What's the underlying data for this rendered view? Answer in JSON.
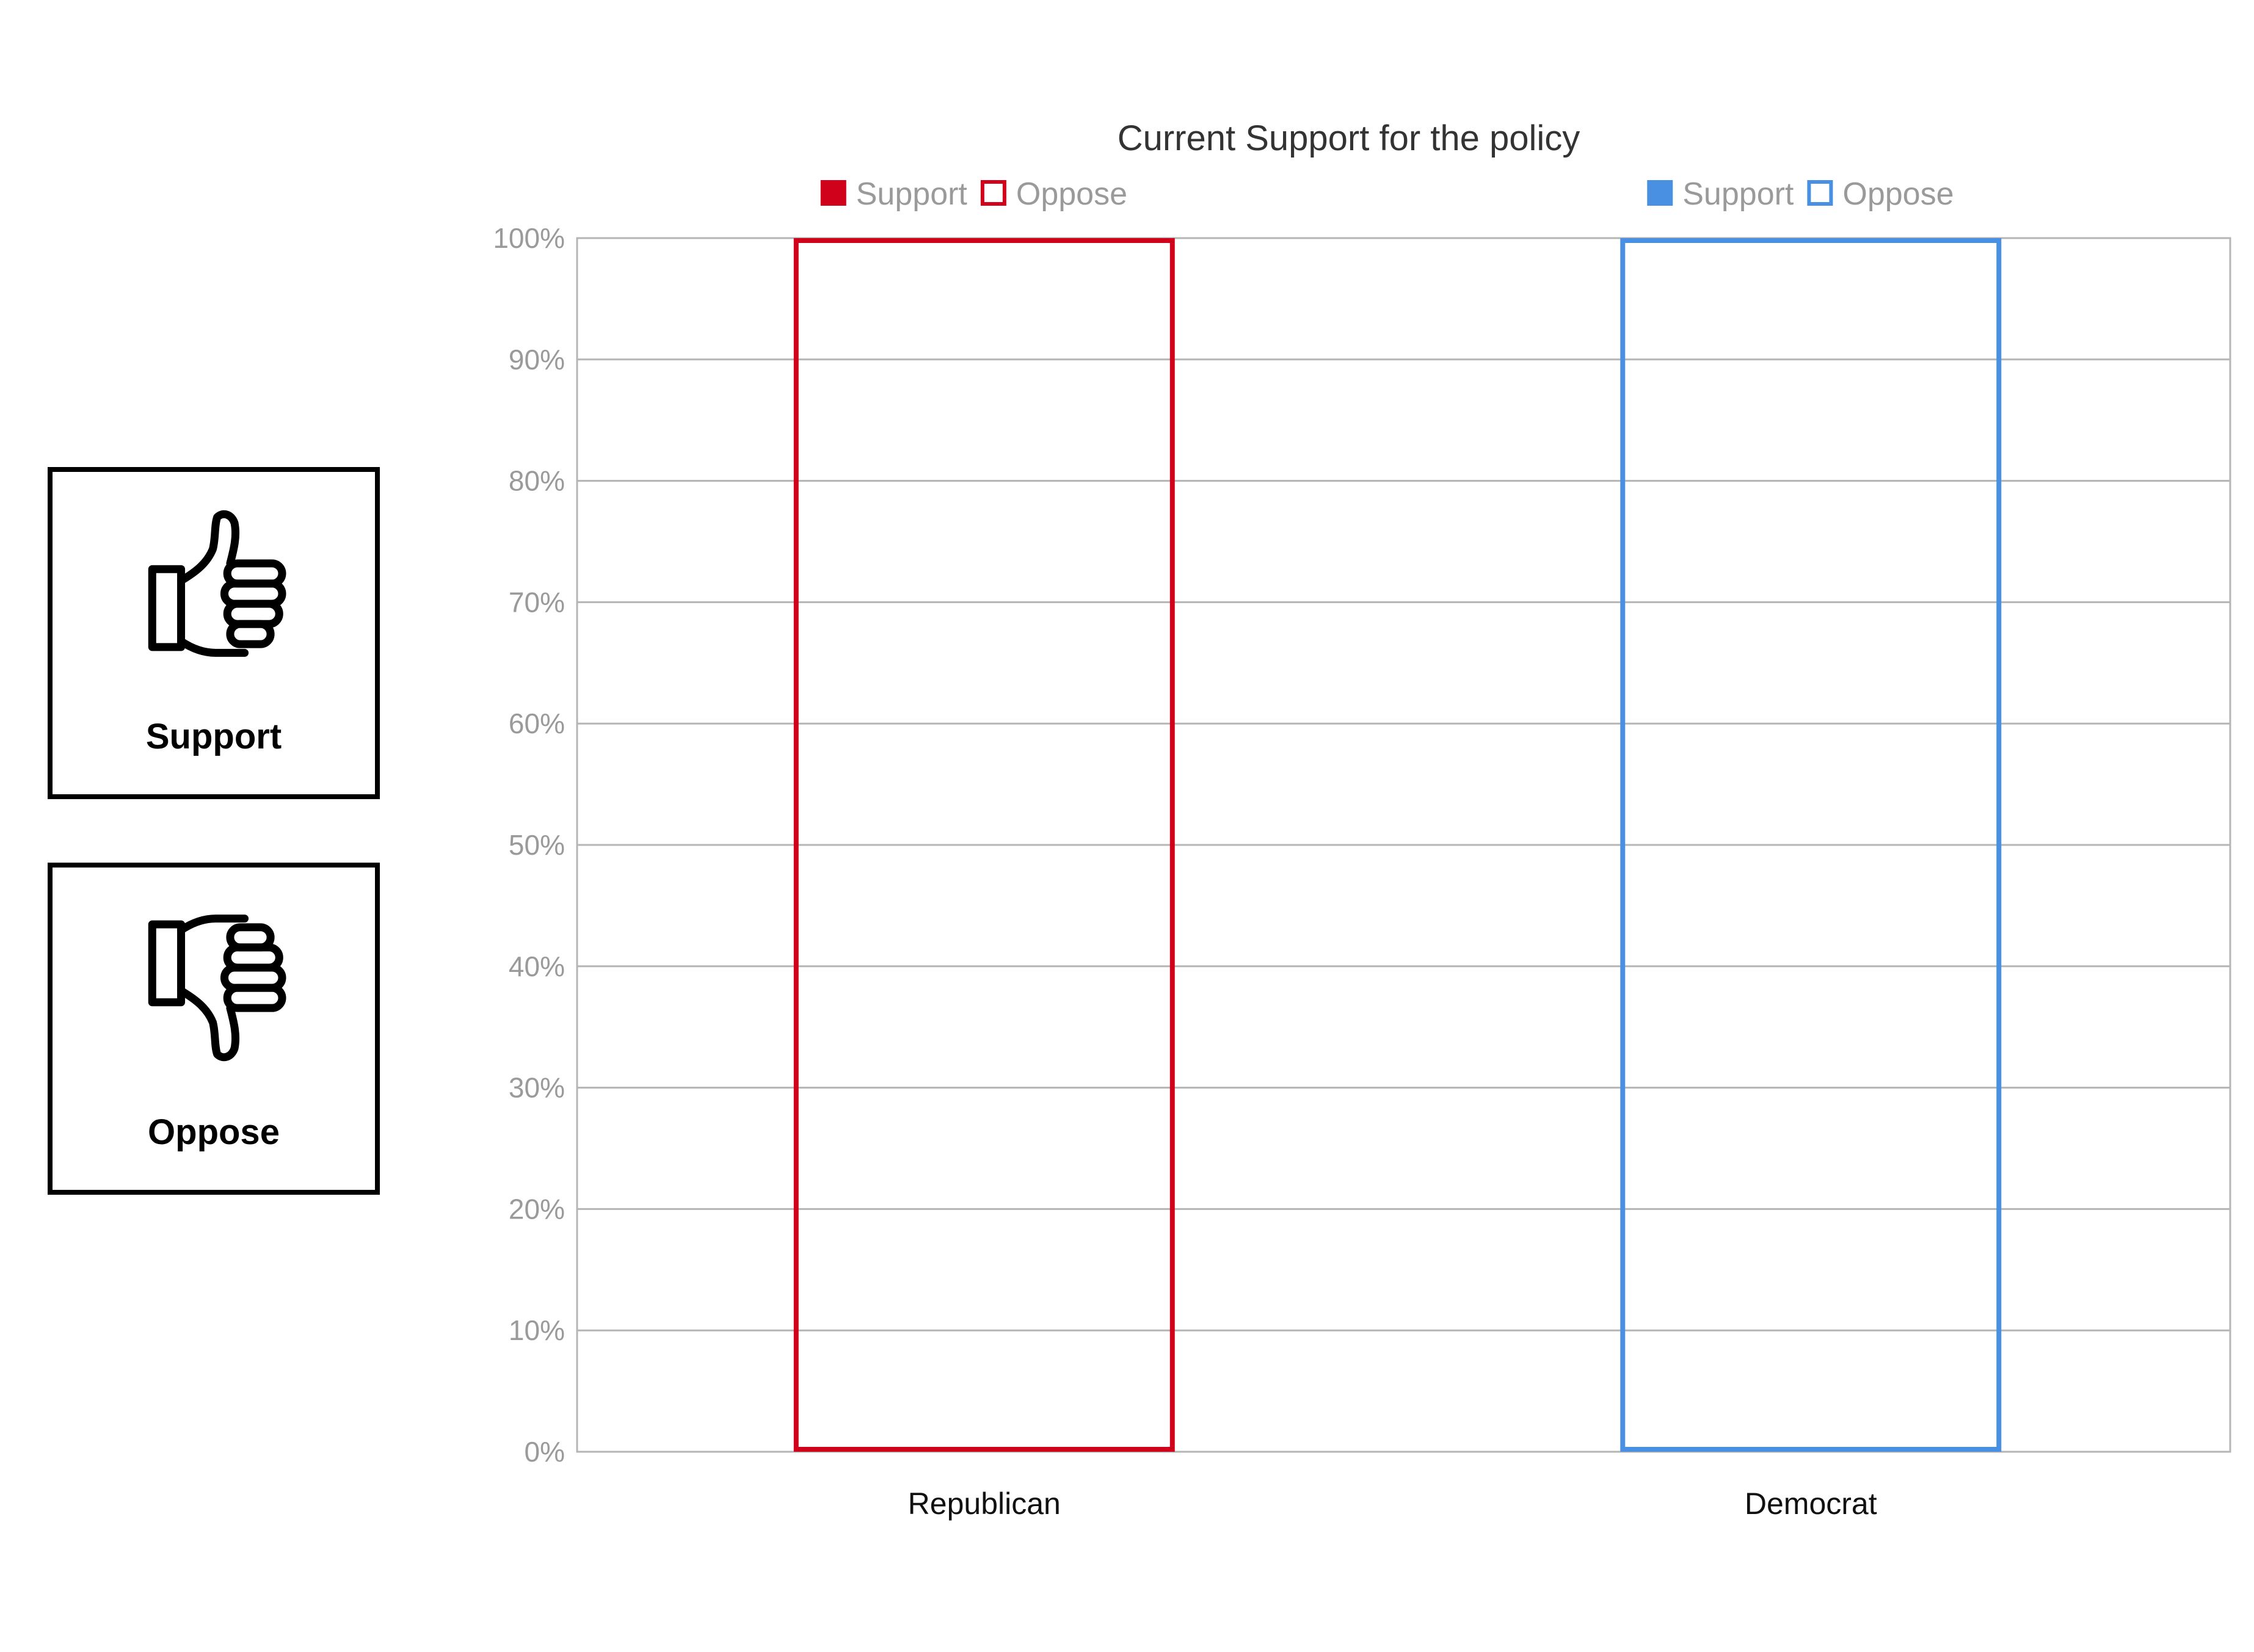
{
  "cards": {
    "support": {
      "label": "Support",
      "icon": "thumbs-up-icon"
    },
    "oppose": {
      "label": "Oppose",
      "icon": "thumbs-down-icon"
    }
  },
  "chart_data": {
    "type": "bar",
    "stacked": true,
    "title": "Current Support for the policy",
    "xlabel": "",
    "ylabel": "",
    "ylim": [
      0,
      100
    ],
    "yticks": [
      "0%",
      "10%",
      "20%",
      "30%",
      "40%",
      "50%",
      "60%",
      "70%",
      "80%",
      "90%",
      "100%"
    ],
    "grid": true,
    "categories": [
      "Republican",
      "Democrat"
    ],
    "category_colors": [
      "#d0021b",
      "#4a90e2"
    ],
    "series": [
      {
        "name": "Support",
        "values": [
          0,
          0
        ],
        "style": "filled"
      },
      {
        "name": "Oppose",
        "values": [
          100,
          100
        ],
        "style": "outline"
      }
    ],
    "legends": [
      {
        "placement": "above-republican",
        "color": "#d0021b",
        "items": [
          "Support",
          "Oppose"
        ]
      },
      {
        "placement": "above-democrat",
        "color": "#4a90e2",
        "items": [
          "Support",
          "Oppose"
        ]
      }
    ]
  }
}
